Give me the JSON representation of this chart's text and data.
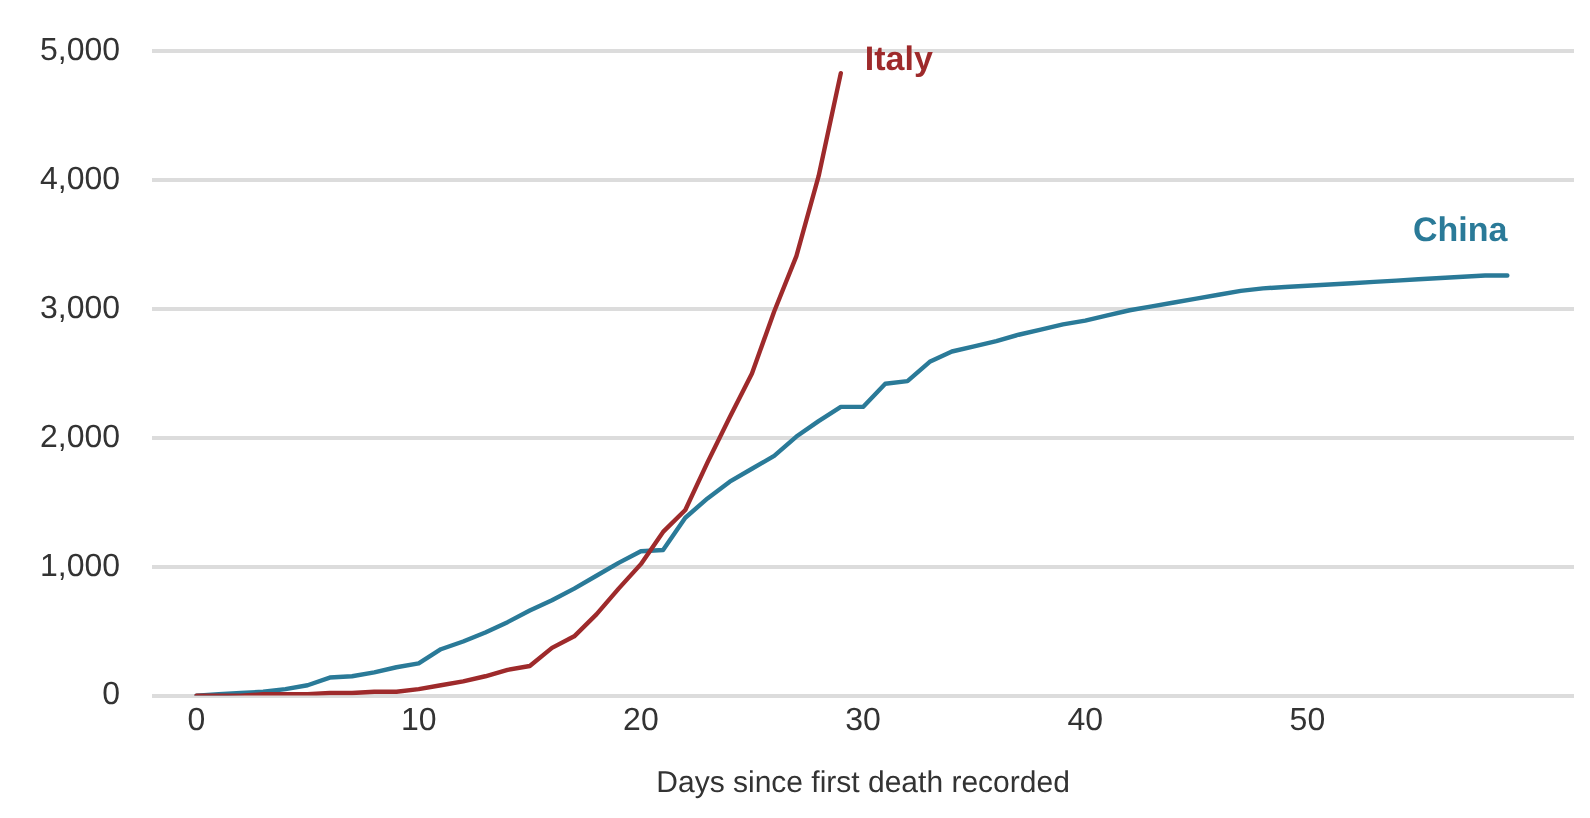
{
  "chart_data": {
    "type": "line",
    "xlabel": "Days since first death recorded",
    "xlim": [
      -2,
      62
    ],
    "xticks": [
      0,
      10,
      20,
      30,
      40,
      50
    ],
    "ylim": [
      0,
      5000
    ],
    "yticks": [
      {
        "value": 0,
        "label": "0"
      },
      {
        "value": 1000,
        "label": "1,000"
      },
      {
        "value": 2000,
        "label": "2,000"
      },
      {
        "value": 3000,
        "label": "3,000"
      },
      {
        "value": 4000,
        "label": "4,000"
      },
      {
        "value": 5000,
        "label": "5,000"
      }
    ],
    "grid": "y",
    "legend": false,
    "marker": "none",
    "line_style": "solid",
    "series": [
      {
        "name": "Italy",
        "color": "#9e2a2b",
        "x": [
          0,
          1,
          2,
          3,
          4,
          5,
          6,
          7,
          8,
          9,
          10,
          11,
          12,
          13,
          14,
          15,
          16,
          17,
          18,
          19,
          20,
          21,
          22,
          23,
          24,
          25,
          26,
          27,
          28,
          29
        ],
        "values": [
          0,
          0,
          0,
          10,
          10,
          10,
          20,
          20,
          30,
          30,
          50,
          80,
          110,
          150,
          200,
          230,
          370,
          460,
          630,
          830,
          1020,
          1270,
          1440,
          1810,
          2160,
          2500,
          2980,
          3410,
          4030,
          4830
        ]
      },
      {
        "name": "China",
        "color": "#2a7a98",
        "x": [
          0,
          1,
          2,
          3,
          4,
          5,
          6,
          7,
          8,
          9,
          10,
          11,
          12,
          13,
          14,
          15,
          16,
          17,
          18,
          19,
          20,
          21,
          22,
          23,
          24,
          25,
          26,
          27,
          28,
          29,
          30,
          31,
          32,
          33,
          34,
          35,
          36,
          37,
          38,
          39,
          40,
          41,
          42,
          43,
          44,
          45,
          46,
          47,
          48,
          49,
          50,
          51,
          52,
          53,
          54,
          55,
          56,
          57,
          58,
          59
        ],
        "values": [
          0,
          10,
          20,
          30,
          50,
          80,
          140,
          150,
          180,
          220,
          250,
          360,
          420,
          490,
          570,
          660,
          740,
          830,
          930,
          1030,
          1120,
          1130,
          1380,
          1530,
          1660,
          1760,
          1860,
          2010,
          2130,
          2240,
          2240,
          2420,
          2440,
          2590,
          2670,
          2710,
          2750,
          2800,
          2840,
          2880,
          2910,
          2950,
          2990,
          3020,
          3050,
          3080,
          3110,
          3140,
          3160,
          3170,
          3180,
          3190,
          3200,
          3210,
          3220,
          3230,
          3240,
          3250,
          3260,
          3260
        ]
      }
    ]
  }
}
